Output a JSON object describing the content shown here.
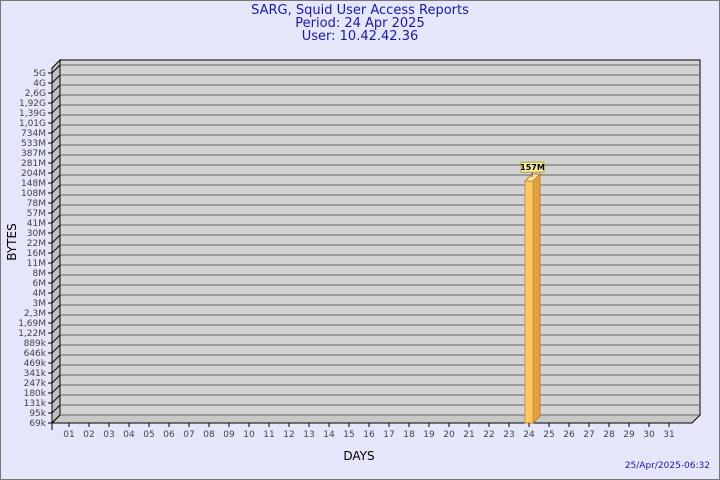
{
  "chart_data": {
    "type": "bar",
    "title": "SARG, Squid User Access Reports",
    "subtitle": [
      "Period: 24 Apr 2025",
      "User: 10.42.42.36"
    ],
    "xlabel": "DAYS",
    "ylabel": "BYTES",
    "categories": [
      "01",
      "02",
      "03",
      "04",
      "05",
      "06",
      "07",
      "08",
      "09",
      "10",
      "11",
      "12",
      "13",
      "14",
      "15",
      "16",
      "17",
      "18",
      "19",
      "20",
      "21",
      "22",
      "23",
      "24",
      "25",
      "26",
      "27",
      "28",
      "29",
      "30",
      "31"
    ],
    "series": [
      {
        "values": [
          0,
          0,
          0,
          0,
          0,
          0,
          0,
          0,
          0,
          0,
          0,
          0,
          0,
          0,
          0,
          0,
          0,
          0,
          0,
          0,
          0,
          0,
          0,
          157000000,
          0,
          0,
          0,
          0,
          0,
          0,
          0
        ]
      }
    ],
    "data_labels": {
      "24": "157M"
    },
    "y_ticks": [
      "69k",
      "95k",
      "131k",
      "180k",
      "247k",
      "341k",
      "469k",
      "646k",
      "889k",
      "1,22M",
      "1,69M",
      "2,3M",
      "3M",
      "4M",
      "6M",
      "8M",
      "11M",
      "16M",
      "22M",
      "30M",
      "41M",
      "57M",
      "78M",
      "108M",
      "148M",
      "204M",
      "281M",
      "387M",
      "533M",
      "734M",
      "1,01G",
      "1,39G",
      "1,92G",
      "2,6G",
      "4G",
      "5G"
    ],
    "y_scale": "log",
    "grid": true,
    "colors": {
      "background": "#e6e6fa",
      "plot": "#d3d3d3",
      "bar": "#ffc864",
      "bar_side": "#e0a040",
      "title": "#1a1aa0"
    }
  },
  "timestamp": "25/Apr/2025-06:32"
}
